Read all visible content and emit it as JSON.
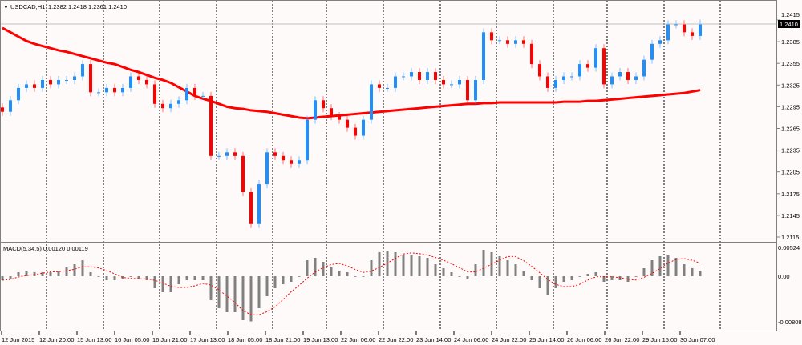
{
  "header": {
    "symbol_label": "USDCAD,H1",
    "ohlc_label": "1.2382 1.2418 1.2361 1.2410"
  },
  "macd_header": {
    "label": "MACD(5,34,5) 0.00120 0.00119"
  },
  "colors": {
    "background": "#fffafa",
    "bull": "#1e90ff",
    "bear": "#ff0000",
    "ma": "#ff0000",
    "histogram": "#808080",
    "signal": "#ff0000",
    "grid": "#000000"
  },
  "chart_data": [
    {
      "type": "candlestick",
      "title": "USDCAD,H1",
      "current_price": "1.2410",
      "ylim": [
        1.21,
        1.243
      ],
      "y_ticks": [
        "1.2415",
        "1.2385",
        "1.2355",
        "1.2325",
        "1.2295",
        "1.2265",
        "1.2235",
        "1.2205",
        "1.2175",
        "1.2145",
        "1.2115"
      ],
      "x_ticks": [
        "12 Jun 2015",
        "12 Jun 20:00",
        "15 Jun 13:00",
        "16 Jun 05:00",
        "16 Jun 21:00",
        "17 Jun 13:00",
        "18 Jun 05:00",
        "18 Jun 21:00",
        "19 Jun 13:00",
        "22 Jun 06:00",
        "22 Jun 22:00",
        "23 Jun 14:00",
        "24 Jun 06:00",
        "24 Jun 22:00",
        "25 Jun 14:00",
        "26 Jun 06:00",
        "26 Jun 22:00",
        "29 Jun 15:00",
        "30 Jun 07:00"
      ],
      "closes": [
        1.2288,
        1.2304,
        1.2321,
        1.2326,
        1.2321,
        1.2332,
        1.2326,
        1.2332,
        1.2332,
        1.2337,
        1.2354,
        1.2315,
        1.2315,
        1.2321,
        1.2315,
        1.2321,
        1.2337,
        1.2332,
        1.2326,
        1.2299,
        1.2293,
        1.2299,
        1.2304,
        1.2321,
        1.231,
        1.231,
        1.2227,
        1.2227,
        1.2232,
        1.2227,
        1.2177,
        1.2133,
        1.2188,
        1.2232,
        1.2227,
        1.2221,
        1.2216,
        1.2221,
        1.2277,
        1.2304,
        1.2293,
        1.2282,
        1.2277,
        1.2266,
        1.2255,
        1.2277,
        1.2326,
        1.2321,
        1.2321,
        1.2337,
        1.2337,
        1.2343,
        1.2332,
        1.2343,
        1.2332,
        1.2326,
        1.2326,
        1.2332,
        1.2304,
        1.2332,
        1.2398,
        1.2387,
        1.2387,
        1.2382,
        1.2387,
        1.2382,
        1.2354,
        1.2337,
        1.2321,
        1.2332,
        1.2337,
        1.2337,
        1.2354,
        1.2349,
        1.2376,
        1.2326,
        1.2337,
        1.2343,
        1.2332,
        1.2337,
        1.236,
        1.2382,
        1.2387,
        1.2409,
        1.2409,
        1.2398,
        1.2393,
        1.241
      ],
      "moving_average": [
        1.2404,
        1.2398,
        1.2392,
        1.2386,
        1.2382,
        1.2379,
        1.2376,
        1.2373,
        1.2371,
        1.2368,
        1.2365,
        1.2362,
        1.2359,
        1.2356,
        1.2354,
        1.235,
        1.2346,
        1.2343,
        1.2339,
        1.2335,
        1.2332,
        1.2328,
        1.2322,
        1.2316,
        1.231,
        1.2306,
        1.2303,
        1.2299,
        1.2295,
        1.2293,
        1.2292,
        1.229,
        1.2289,
        1.2288,
        1.2286,
        1.2284,
        1.2282,
        1.228,
        1.2279,
        1.228,
        1.2281,
        1.2282,
        1.2283,
        1.2284,
        1.2285,
        1.2286,
        1.2287,
        1.2288,
        1.2289,
        1.229,
        1.2291,
        1.2292,
        1.2293,
        1.2294,
        1.2295,
        1.2296,
        1.2297,
        1.2298,
        1.2299,
        1.2299,
        1.23,
        1.23,
        1.2301,
        1.2301,
        1.2301,
        1.2301,
        1.2301,
        1.2301,
        1.2301,
        1.2301,
        1.2302,
        1.2302,
        1.2302,
        1.2303,
        1.2303,
        1.2304,
        1.2305,
        1.2306,
        1.2307,
        1.2308,
        1.2309,
        1.231,
        1.2311,
        1.2312,
        1.2313,
        1.2314,
        1.2316,
        1.2318
      ]
    },
    {
      "type": "bar",
      "title": "MACD(5,34,5)",
      "macd_value": "0.00120",
      "signal_value": "0.00119",
      "ylim": [
        -0.00808,
        0.00524
      ],
      "y_ticks": [
        "0.00524",
        "0.00",
        "-0.00808"
      ],
      "histogram": [
        -0.00071,
        -0.00042,
        0.00071,
        0.00099,
        0.00071,
        0.00071,
        0.00071,
        0.00099,
        0.0017,
        0.00212,
        0.00283,
        0.00071,
        0,
        -0.00071,
        -0.00071,
        -0.00042,
        0,
        -0.00042,
        -0.00071,
        -0.00212,
        -0.00283,
        -0.00283,
        -0.00142,
        -0.00071,
        -0.00071,
        -0.00071,
        -0.00425,
        -0.00566,
        -0.00637,
        -0.00637,
        -0.00779,
        -0.008,
        -0.00566,
        -0.00354,
        -0.00212,
        -0.00142,
        -0.00099,
        0,
        0.00283,
        0.00326,
        0.00255,
        0.0017,
        0.00099,
        0.00071,
        0,
        0,
        0.00283,
        0.00425,
        0.00453,
        0.00425,
        0.00382,
        0.00382,
        0.00354,
        0.00326,
        0.00212,
        0.00142,
        0.00071,
        0,
        -0.00042,
        0.00212,
        0.00467,
        0.00425,
        0.00354,
        0.00283,
        0.00212,
        0.00099,
        -0.00071,
        -0.00212,
        -0.00326,
        -0.00212,
        -0.00099,
        -0.00071,
        0,
        0.00042,
        0.00071,
        -0.00099,
        -0.00071,
        -0.00071,
        -0.00099,
        0,
        0.00142,
        0.00283,
        0.00354,
        0.00382,
        0.00326,
        0.00212,
        0.00142,
        0.00099
      ]
    }
  ]
}
